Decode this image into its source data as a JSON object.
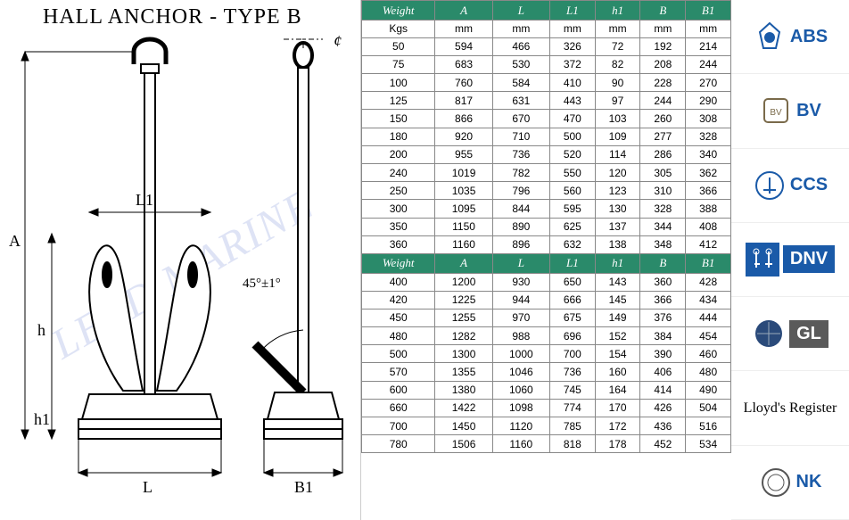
{
  "title": "HALL ANCHOR - TYPE B",
  "watermark": "LEAD MARINE",
  "angle_label": "45°±1°",
  "centerline_symbol": "¢",
  "dim_labels": {
    "A": "A",
    "h": "h",
    "h1": "h1",
    "L": "L",
    "L1": "L1",
    "B1": "B1"
  },
  "table": {
    "header_bg": "#2a8a6a",
    "header_color": "#ffffff",
    "columns": [
      "Weight",
      "A",
      "L",
      "L1",
      "h1",
      "B",
      "B1"
    ],
    "units": [
      "Kgs",
      "mm",
      "mm",
      "mm",
      "mm",
      "mm",
      "mm"
    ],
    "section1": [
      [
        50,
        594,
        466,
        326,
        72,
        192,
        214
      ],
      [
        75,
        683,
        530,
        372,
        82,
        208,
        244
      ],
      [
        100,
        760,
        584,
        410,
        90,
        228,
        270
      ],
      [
        125,
        817,
        631,
        443,
        97,
        244,
        290
      ],
      [
        150,
        866,
        670,
        470,
        103,
        260,
        308
      ],
      [
        180,
        920,
        710,
        500,
        109,
        277,
        328
      ],
      [
        200,
        955,
        736,
        520,
        114,
        286,
        340
      ],
      [
        240,
        1019,
        782,
        550,
        120,
        305,
        362
      ],
      [
        250,
        1035,
        796,
        560,
        123,
        310,
        366
      ],
      [
        300,
        1095,
        844,
        595,
        130,
        328,
        388
      ],
      [
        350,
        1150,
        890,
        625,
        137,
        344,
        408
      ],
      [
        360,
        1160,
        896,
        632,
        138,
        348,
        412
      ]
    ],
    "section2": [
      [
        400,
        1200,
        930,
        650,
        143,
        360,
        428
      ],
      [
        420,
        1225,
        944,
        666,
        145,
        366,
        434
      ],
      [
        450,
        1255,
        970,
        675,
        149,
        376,
        444
      ],
      [
        480,
        1282,
        988,
        696,
        152,
        384,
        454
      ],
      [
        500,
        1300,
        1000,
        700,
        154,
        390,
        460
      ],
      [
        570,
        1355,
        1046,
        736,
        160,
        406,
        480
      ],
      [
        600,
        1380,
        1060,
        745,
        164,
        414,
        490
      ],
      [
        660,
        1422,
        1098,
        774,
        170,
        426,
        504
      ],
      [
        700,
        1450,
        1120,
        785,
        172,
        436,
        516
      ],
      [
        780,
        1506,
        1160,
        818,
        178,
        452,
        534
      ]
    ]
  },
  "logos": [
    {
      "name": "abs",
      "text": "ABS",
      "color": "#1a5aa8",
      "icon_color": "#1a5aa8"
    },
    {
      "name": "bv",
      "text": "BV",
      "color": "#1a5aa8",
      "icon_color": "#7a6a4a"
    },
    {
      "name": "ccs",
      "text": "CCS",
      "color": "#1a5aa8",
      "icon_color": "#1a5aa8"
    },
    {
      "name": "dnv",
      "text": "DNV",
      "color": "#ffffff",
      "bg": "#1a5aa8",
      "icon_color": "#1a5aa8"
    },
    {
      "name": "gl",
      "text": "GL",
      "color": "#ffffff",
      "bg": "#5a5a5a",
      "icon_color": "#2a4a7a"
    },
    {
      "name": "lloyds",
      "text": "Lloyd's Register",
      "color": "#000000",
      "script": true
    },
    {
      "name": "nk",
      "text": "NK",
      "color": "#1a5aa8",
      "icon_color": "#555555"
    }
  ]
}
